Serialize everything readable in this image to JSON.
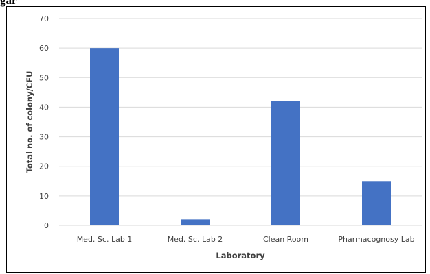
{
  "header_fragment": "gar",
  "chart_data": {
    "type": "bar",
    "categories": [
      "Med. Sc. Lab 1",
      "Med. Sc. Lab 2",
      "Clean Room",
      "Pharmacognosy Lab"
    ],
    "values": [
      60,
      2,
      42,
      15
    ],
    "title": "",
    "xlabel": "Laboratory",
    "ylabel": "Total no. of colony/CFU",
    "ylim": [
      0,
      70
    ],
    "yticks": [
      0,
      10,
      20,
      30,
      40,
      50,
      60,
      70
    ],
    "grid": true,
    "bar_color": "#4472C4",
    "grid_color": "#d9d9d9",
    "legend": "none"
  }
}
